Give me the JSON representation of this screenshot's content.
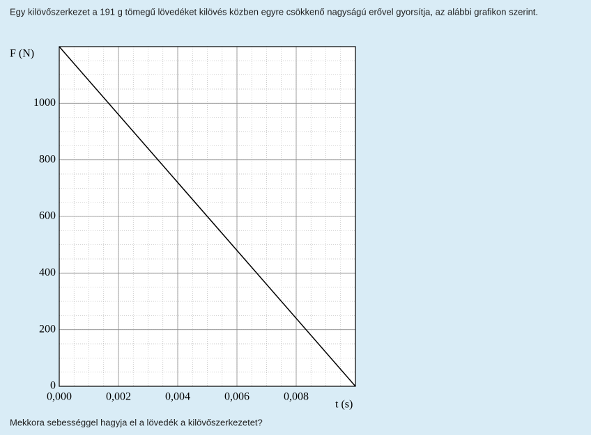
{
  "question": "Egy kilövőszerkezet a 191 g tömegű lövedéket kilövés közben egyre csökkenő nagyságú erővel gyorsítja, az alábbi grafikon szerint.",
  "prompt": "Mekkora sebességgel hagyja el a lövedék a kilövőszerkezetet?",
  "chart_data": {
    "type": "line",
    "x_label": "t (s)",
    "y_label": "F (N)",
    "x": [
      0,
      0.01
    ],
    "series": [
      {
        "color": "#000000",
        "values": [
          1200,
          0
        ]
      }
    ],
    "xlim": [
      0,
      0.01
    ],
    "ylim": [
      0,
      1200
    ],
    "xticks": [
      {
        "value": 0,
        "label": "0,000"
      },
      {
        "value": 0.002,
        "label": "0,002"
      },
      {
        "value": 0.004,
        "label": "0,004"
      },
      {
        "value": 0.006,
        "label": "0,006"
      },
      {
        "value": 0.008,
        "label": "0,008"
      }
    ],
    "yticks": [
      0,
      200,
      400,
      600,
      800,
      1000
    ],
    "grid": true
  }
}
